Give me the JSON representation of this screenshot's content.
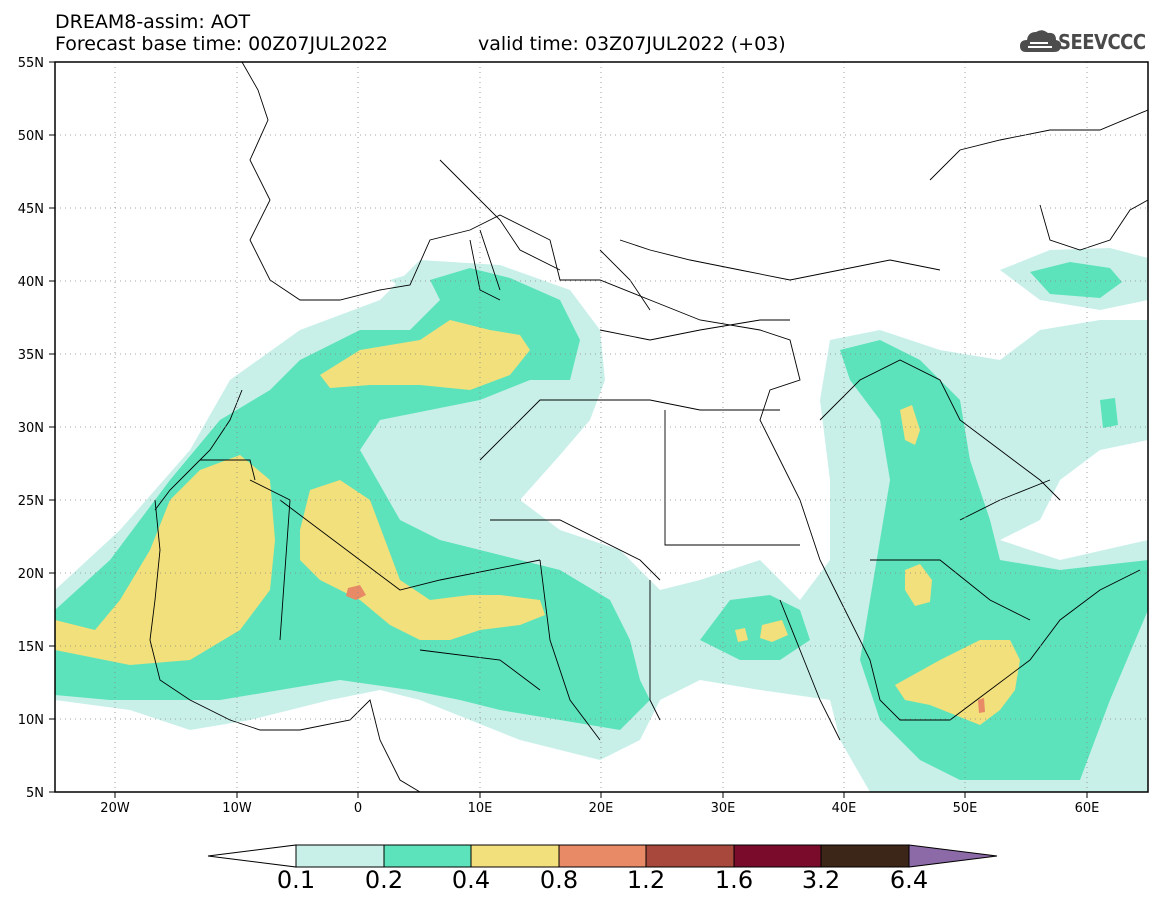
{
  "header": {
    "title": "DREAM8-assim: AOT",
    "forecast_base": "Forecast base time: 00Z07JUL2022",
    "valid_time": "valid time: 03Z07JUL2022 (+03)"
  },
  "logo": {
    "text": "SEEVCCC",
    "icon": "cloud-icon"
  },
  "map": {
    "projection": "equirectangular",
    "lon_range": [
      -25,
      65
    ],
    "lat_range": [
      5,
      55
    ],
    "lat_tick_labels": [
      "55N",
      "50N",
      "45N",
      "40N",
      "35N",
      "30N",
      "25N",
      "20N",
      "15N",
      "10N",
      "5N"
    ],
    "lon_tick_labels": [
      "20W",
      "10W",
      "0",
      "10E",
      "20E",
      "30E",
      "40E",
      "50E",
      "60E"
    ],
    "grid": "dotted",
    "field": "AOT"
  },
  "colorbar": {
    "labels": [
      "0.1",
      "0.2",
      "0.4",
      "0.8",
      "1.2",
      "1.6",
      "3.2",
      "6.4"
    ],
    "colors": [
      "#ffffff",
      "#c8f0e9",
      "#5ce3bb",
      "#f2e07c",
      "#e88a66",
      "#a8473c",
      "#7a0b2a",
      "#3b2618",
      "#8c6aa8"
    ]
  }
}
